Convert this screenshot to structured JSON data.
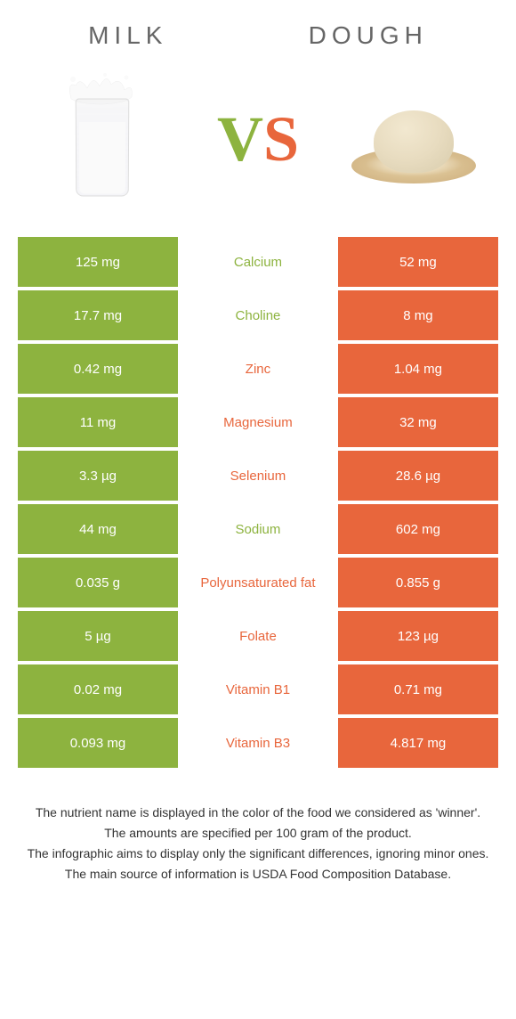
{
  "colors": {
    "green": "#8db33f",
    "orange": "#e8663c",
    "text": "#333333",
    "title": "#666666"
  },
  "header": {
    "left_title": "MILK",
    "right_title": "DOUGH",
    "vs_v": "V",
    "vs_s": "S"
  },
  "table": {
    "left_bg": "#8db33f",
    "right_bg": "#e8663c",
    "rows": [
      {
        "left": "125 mg",
        "label": "Calcium",
        "right": "52 mg",
        "winner": "left"
      },
      {
        "left": "17.7 mg",
        "label": "Choline",
        "right": "8 mg",
        "winner": "left"
      },
      {
        "left": "0.42 mg",
        "label": "Zinc",
        "right": "1.04 mg",
        "winner": "right"
      },
      {
        "left": "11 mg",
        "label": "Magnesium",
        "right": "32 mg",
        "winner": "right"
      },
      {
        "left": "3.3 µg",
        "label": "Selenium",
        "right": "28.6 µg",
        "winner": "right"
      },
      {
        "left": "44 mg",
        "label": "Sodium",
        "right": "602 mg",
        "winner": "left"
      },
      {
        "left": "0.035 g",
        "label": "Polyunsaturated fat",
        "right": "0.855 g",
        "winner": "right"
      },
      {
        "left": "5 µg",
        "label": "Folate",
        "right": "123 µg",
        "winner": "right"
      },
      {
        "left": "0.02 mg",
        "label": "Vitamin B1",
        "right": "0.71 mg",
        "winner": "right"
      },
      {
        "left": "0.093 mg",
        "label": "Vitamin B3",
        "right": "4.817 mg",
        "winner": "right"
      }
    ]
  },
  "notes": [
    "The nutrient name is displayed in the color of the food we considered as 'winner'.",
    "The amounts are specified per 100 gram of the product.",
    "The infographic aims to display only the significant differences, ignoring minor ones.",
    "The main source of information is USDA Food Composition Database."
  ]
}
